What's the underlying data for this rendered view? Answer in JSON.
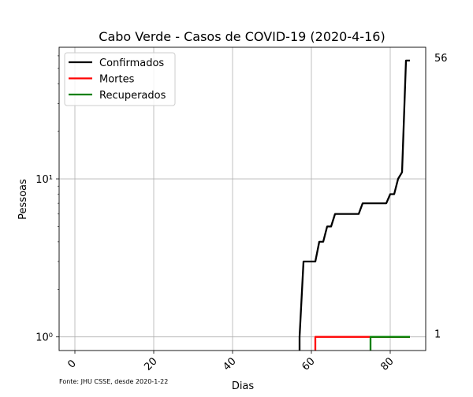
{
  "chart_data": {
    "type": "line",
    "title": "Cabo Verde - Casos de COVID-19 (2020-4-16)",
    "xlabel": "Dias",
    "ylabel": "Pessoas",
    "yscale": "log",
    "xlim": [
      -4,
      89
    ],
    "ylim": [
      0.82,
      68
    ],
    "x_ticks": [
      0,
      20,
      40,
      60,
      80
    ],
    "y_ticks": [
      {
        "value": 1,
        "label": "10⁰"
      },
      {
        "value": 10,
        "label": "10¹"
      }
    ],
    "grid": true,
    "legend_position": "top-left",
    "source_note": "Fonte: JHU CSSE, desde 2020-1-22",
    "series": [
      {
        "name": "Confirmados",
        "color": "#000000",
        "end_label": "56",
        "points": [
          [
            57,
            0.5
          ],
          [
            57,
            1
          ],
          [
            58,
            3
          ],
          [
            59,
            3
          ],
          [
            60,
            3
          ],
          [
            61,
            3
          ],
          [
            62,
            4
          ],
          [
            63,
            4
          ],
          [
            64,
            5
          ],
          [
            65,
            5
          ],
          [
            66,
            6
          ],
          [
            67,
            6
          ],
          [
            68,
            6
          ],
          [
            69,
            6
          ],
          [
            70,
            6
          ],
          [
            71,
            6
          ],
          [
            72,
            6
          ],
          [
            73,
            7
          ],
          [
            74,
            7
          ],
          [
            75,
            7
          ],
          [
            76,
            7
          ],
          [
            77,
            7
          ],
          [
            78,
            7
          ],
          [
            79,
            7
          ],
          [
            80,
            8
          ],
          [
            81,
            8
          ],
          [
            82,
            10
          ],
          [
            83,
            11
          ],
          [
            84,
            56
          ],
          [
            85,
            56
          ]
        ]
      },
      {
        "name": "Mortes",
        "color": "#ff0000",
        "end_label": "1",
        "points": [
          [
            61,
            0.5
          ],
          [
            61,
            1
          ],
          [
            85,
            1
          ]
        ]
      },
      {
        "name": "Recuperados",
        "color": "#008000",
        "end_label": "",
        "points": [
          [
            75,
            0.5
          ],
          [
            75,
            1
          ],
          [
            85,
            1
          ]
        ]
      }
    ]
  }
}
